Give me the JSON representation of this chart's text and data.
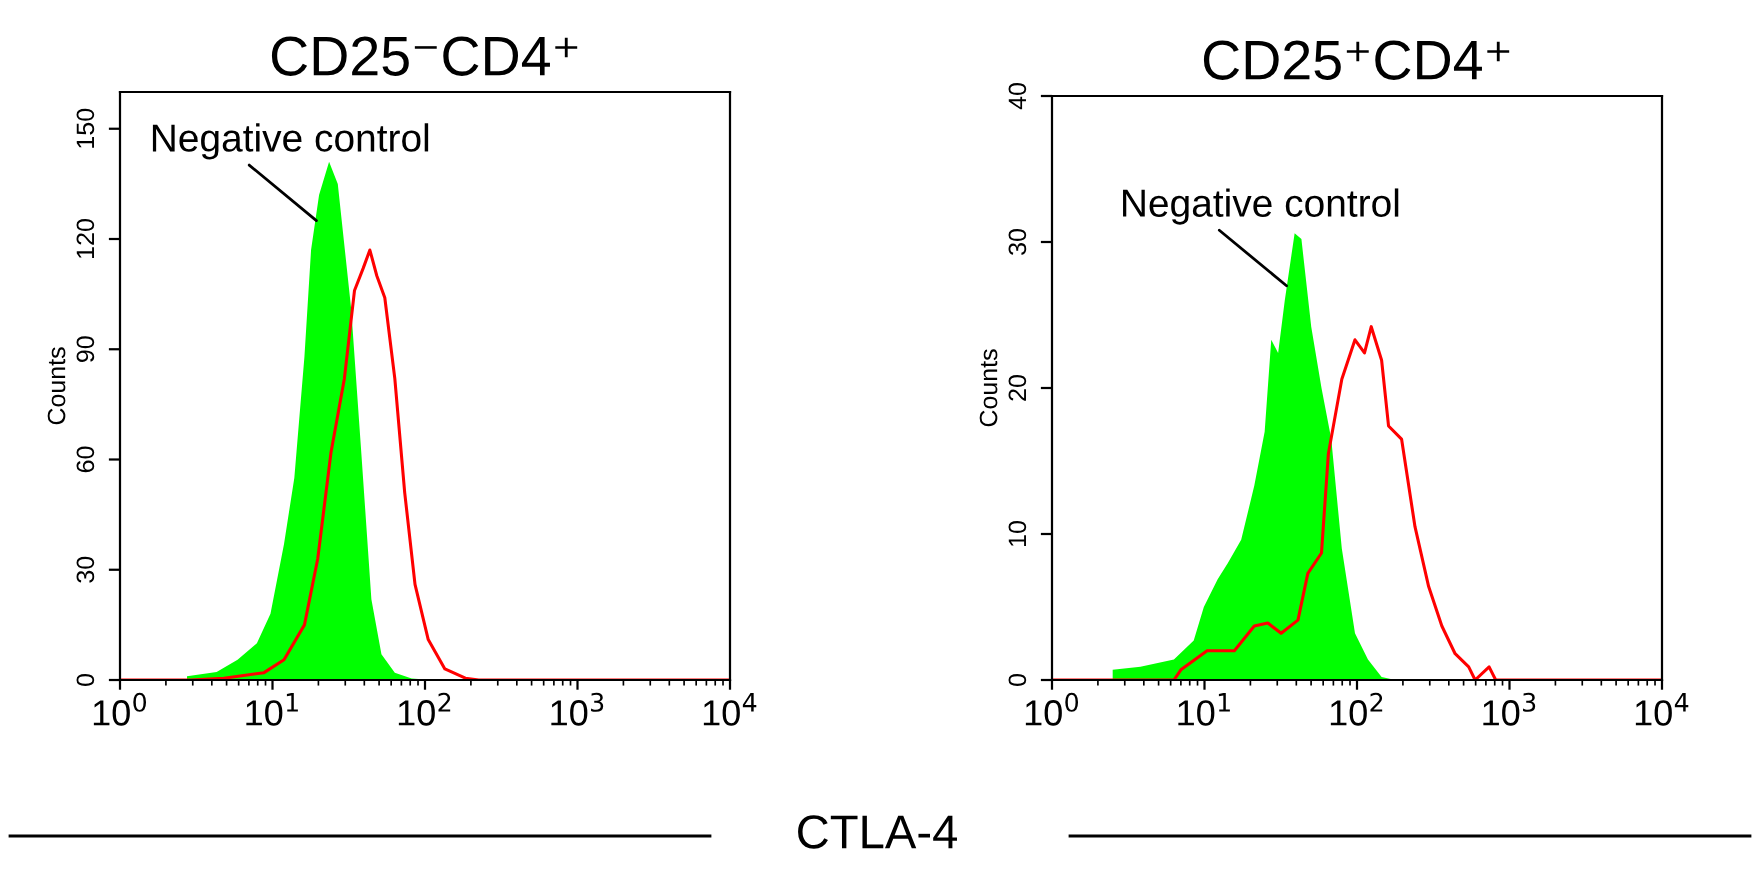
{
  "chart_data": [
    {
      "type": "area",
      "title": "CD25⁻CD4⁺",
      "xlabel": "CTLA-4",
      "ylabel": "Counts",
      "log": "x",
      "grid": false,
      "legend": false,
      "xlim": [
        1,
        10000
      ],
      "xticks": [
        {
          "value": 1,
          "label": "10$^{0}$"
        },
        {
          "value": 10,
          "label": "10$^{1}$"
        },
        {
          "value": 100,
          "label": "10$^{2}$"
        },
        {
          "value": 1000,
          "label": "10$^{3}$"
        },
        {
          "value": 10000,
          "label": "10$^{4}$"
        }
      ],
      "ylim": [
        0,
        160
      ],
      "yticks": [
        0,
        30,
        60,
        90,
        120,
        150
      ],
      "annotations": [
        {
          "text": "Negative control",
          "x": 19.4,
          "y": 125
        }
      ],
      "series": [
        {
          "color": "#00ff00",
          "x": [
            2.75,
            4.3,
            5.9,
            7.9,
            9.7,
            11.9,
            13.9,
            16.2,
            17.9,
            20.2,
            23.5,
            26.8,
            32.8,
            38.2,
            44.5,
            51.8,
            63.4,
            81.7,
            110,
            10000
          ],
          "values": [
            1,
            2.2,
            5.5,
            10,
            18,
            37,
            55,
            88,
            117,
            132,
            141,
            135,
            101,
            62,
            22,
            7,
            2,
            0.4,
            0,
            0
          ]
        },
        {
          "type": "line",
          "color": "#ff0000",
          "x": [
            1,
            2.9,
            4.8,
            8.8,
            11.9,
            16.2,
            19.8,
            24.2,
            29.6,
            34.5,
            39.3,
            43.5,
            48.3,
            54.5,
            63.4,
            73.6,
            86,
            105,
            135,
            184,
            225,
            10000
          ],
          "values": [
            0,
            0,
            0.5,
            2,
            5.5,
            15,
            33,
            62,
            82,
            106,
            112,
            117,
            110,
            104,
            82,
            51,
            26,
            11,
            3,
            0.5,
            0,
            0
          ]
        }
      ]
    },
    {
      "type": "area",
      "title": "CD25⁺CD4⁺",
      "ylabel": "Counts",
      "log": "x",
      "grid": false,
      "legend": false,
      "xlim": [
        1,
        10000
      ],
      "xticks": [
        {
          "value": 1,
          "label": "10$^{0}$"
        },
        {
          "value": 10,
          "label": "10$^{1}$"
        },
        {
          "value": 100,
          "label": "10$^{2}$"
        },
        {
          "value": 1000,
          "label": "10$^{3}$"
        },
        {
          "value": 10000,
          "label": "10$^{4}$"
        }
      ],
      "ylim": [
        0,
        40
      ],
      "yticks": [
        0,
        10,
        20,
        30,
        40
      ],
      "annotations": [
        {
          "text": "Negative control",
          "x": 34.5,
          "y": 27
        }
      ],
      "series": [
        {
          "color": "#00ff00",
          "x": [
            2.5,
            3.8,
            6.3,
            8.5,
            9.9,
            12.2,
            14.2,
            17.4,
            21.2,
            24.8,
            27.4,
            30.4,
            33.6,
            39,
            43.2,
            50.1,
            58.5,
            67.8,
            79.5,
            97,
            118,
            145,
            178,
            10000
          ],
          "values": [
            0.7,
            0.9,
            1.4,
            2.7,
            5,
            6.9,
            8,
            9.6,
            13.3,
            17,
            23.3,
            22.4,
            26,
            30.6,
            30.2,
            24.2,
            20,
            16.5,
            9,
            3.2,
            1.4,
            0.2,
            0,
            0
          ]
        },
        {
          "type": "line",
          "color": "#ff0000",
          "x": [
            1,
            6.3,
            7,
            10.4,
            15.7,
            21.2,
            26,
            31.8,
            41,
            47.6,
            58.5,
            64.9,
            79.5,
            97,
            112,
            124,
            145,
            161,
            196,
            240,
            295,
            360,
            440,
            540,
            595,
            735,
            812,
            10000
          ],
          "values": [
            0,
            0,
            0.7,
            2,
            2,
            3.7,
            3.9,
            3.2,
            4.1,
            7.3,
            8.7,
            15.5,
            20.6,
            23.3,
            22.4,
            24.2,
            21.9,
            17.4,
            16.5,
            10.5,
            6.4,
            3.7,
            1.8,
            0.9,
            0,
            0.9,
            0,
            0
          ]
        }
      ]
    }
  ]
}
